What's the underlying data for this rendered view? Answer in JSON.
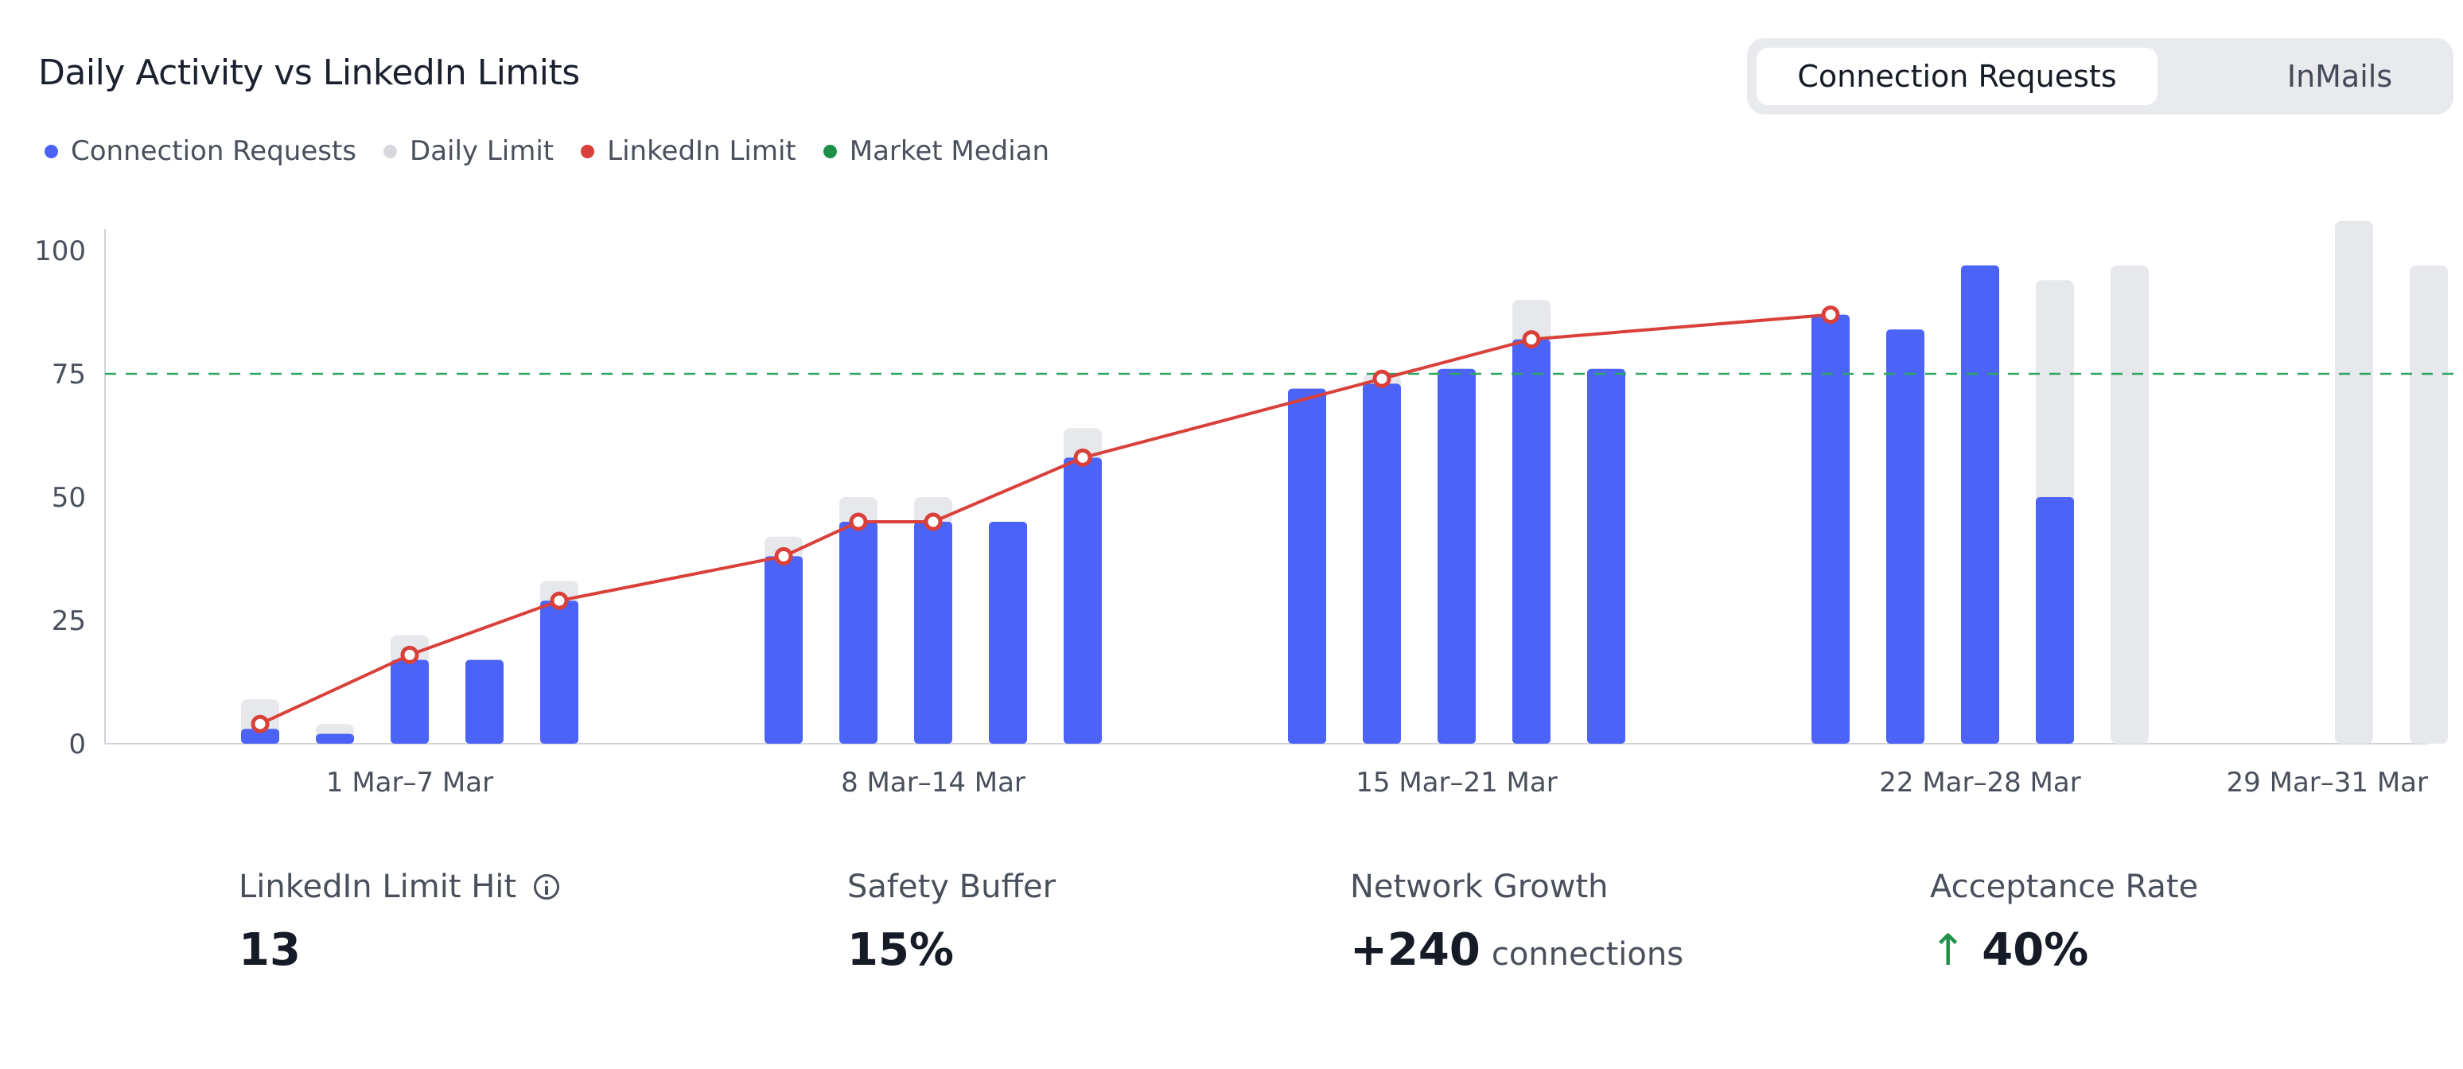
{
  "header": {
    "title": "Daily Activity vs LinkedIn Limits",
    "tabs": [
      {
        "label": "Connection Requests",
        "active": true
      },
      {
        "label": "InMails",
        "active": false
      }
    ]
  },
  "colors": {
    "requests": "#4b63f7",
    "daily_limit": "#e6e8ec",
    "linkedin_limit": "#d9403a",
    "median": "#2fa563",
    "axis": "#cfd2d8",
    "text": "#4a4f5c"
  },
  "chart_data": {
    "type": "bar",
    "title": "Daily Activity vs LinkedIn Limits",
    "legend_position": "top-left",
    "ylim": [
      0,
      105
    ],
    "y_ticks": [
      0,
      25,
      50,
      75,
      100
    ],
    "week_labels": [
      {
        "label": "1 Mar–7 Mar",
        "start": 1,
        "end": 7
      },
      {
        "label": "8 Mar–14 Mar",
        "start": 8,
        "end": 14
      },
      {
        "label": "15 Mar–21 Mar",
        "start": 15,
        "end": 21
      },
      {
        "label": "22 Mar–28 Mar",
        "start": 22,
        "end": 28
      },
      {
        "label": "29 Mar–31 Mar",
        "start": 29,
        "end": 31
      }
    ],
    "days": [
      1,
      2,
      3,
      4,
      5,
      6,
      7,
      8,
      9,
      10,
      11,
      12,
      13,
      14,
      15,
      16,
      17,
      18,
      19,
      20,
      21,
      22,
      23,
      24,
      25,
      26,
      27,
      28,
      29,
      30,
      31
    ],
    "series": [
      {
        "name": "Connection Requests",
        "values": [
          0,
          3,
          2,
          17,
          17,
          29,
          0,
          0,
          38,
          45,
          45,
          45,
          58,
          0,
          0,
          72,
          73,
          76,
          82,
          76,
          0,
          0,
          87,
          84,
          97,
          50,
          0,
          0,
          0,
          0,
          0
        ]
      },
      {
        "name": "Daily Limit",
        "values": [
          0,
          9,
          4,
          22,
          17,
          33,
          0,
          0,
          42,
          50,
          50,
          45,
          64,
          0,
          0,
          72,
          75,
          76,
          90,
          76,
          0,
          0,
          87,
          84,
          97,
          94,
          97,
          0,
          0,
          106,
          97
        ]
      },
      {
        "name": "LinkedIn Limit",
        "points": [
          [
            2,
            4
          ],
          [
            4,
            18
          ],
          [
            6,
            29
          ],
          [
            9,
            38
          ],
          [
            10,
            45
          ],
          [
            11,
            45
          ],
          [
            13,
            58
          ],
          [
            17,
            74
          ],
          [
            19,
            82
          ],
          [
            23,
            87
          ]
        ]
      }
    ],
    "market_median": {
      "name": "Market Median",
      "value": 75
    }
  },
  "stats": [
    {
      "label": "LinkedIn Limit Hit",
      "value": "13",
      "unit": "",
      "trend": ""
    },
    {
      "label": "Safety Buffer",
      "value": "15%",
      "unit": "",
      "trend": ""
    },
    {
      "label": "Network Growth",
      "value": "+240",
      "unit": "connections",
      "trend": ""
    },
    {
      "label": "Acceptance Rate",
      "value": "40%",
      "unit": "",
      "trend": "↑"
    }
  ]
}
